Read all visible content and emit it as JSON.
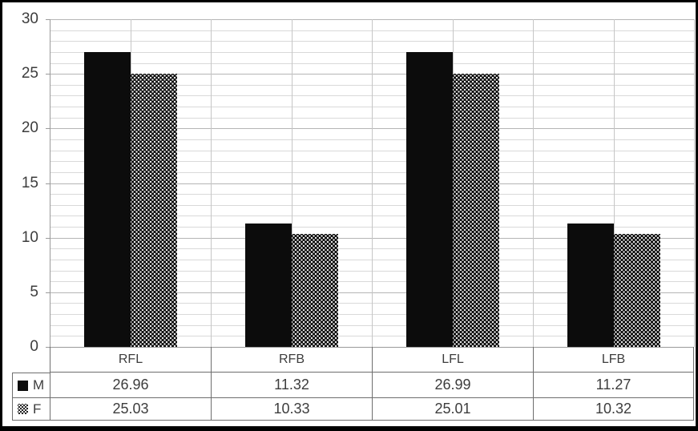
{
  "chart_data": {
    "type": "bar",
    "title": "",
    "categories": [
      "RFL",
      "RFB",
      "LFL",
      "LFB"
    ],
    "series": [
      {
        "name": "M",
        "fill": "solid-black",
        "values": [
          26.96,
          11.32,
          26.99,
          11.27
        ]
      },
      {
        "name": "F",
        "fill": "checker-pattern",
        "values": [
          25.03,
          10.33,
          25.01,
          10.32
        ]
      }
    ],
    "xlabel": "",
    "ylabel": "",
    "ylim": [
      0,
      30
    ],
    "y_major_step": 5,
    "y_minor_step": 1,
    "y_axis_labels": [
      "30",
      "25",
      "20",
      "15",
      "10",
      "5",
      "0"
    ],
    "grid": true,
    "vertical_gridlines_per_category": 2,
    "legend_position": "data-table-left",
    "data_table_shown": true,
    "value_decimals": 2
  },
  "colors": {
    "bar_solid": "#0c0c0c",
    "pattern_background": "#0a0a0a",
    "pattern_dots": "#ededed",
    "minor_gridline": "#d9d9d9",
    "major_gridline": "#b5b5b5",
    "vertical_gridline": "#c6c6c6",
    "axis_line": "#9a9a9a",
    "table_border": "#6e6e6e",
    "text": "#3d3d3d",
    "frame_border": "#000000",
    "background": "#ffffff"
  }
}
